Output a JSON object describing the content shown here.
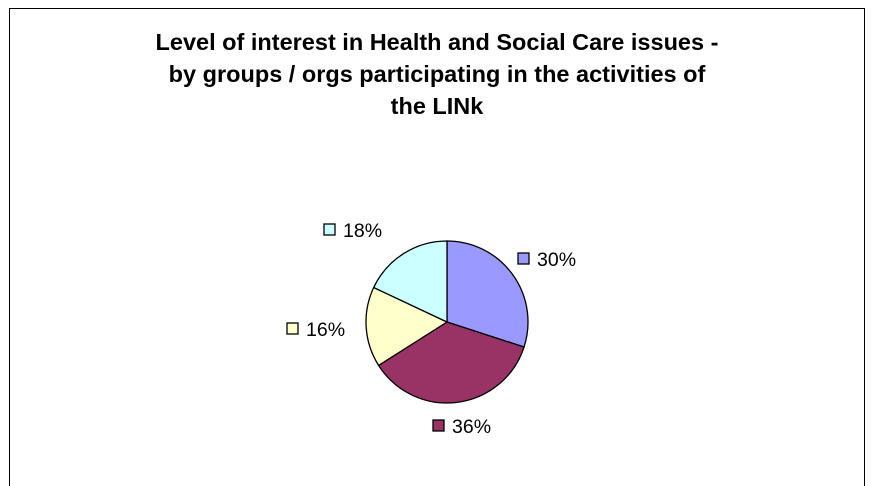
{
  "chart_data": {
    "type": "pie",
    "title_lines": [
      "Level of interest in Health and Social Care issues -",
      "by groups / orgs participating in the activities of",
      "the LINk"
    ],
    "slices": [
      {
        "label": "30%",
        "value": 30,
        "color": "#9999ff"
      },
      {
        "label": "36%",
        "value": 36,
        "color": "#993366"
      },
      {
        "label": "16%",
        "value": 16,
        "color": "#ffffcc"
      },
      {
        "label": "18%",
        "value": 18,
        "color": "#ccffff"
      }
    ],
    "legend": "none",
    "grid": false
  }
}
